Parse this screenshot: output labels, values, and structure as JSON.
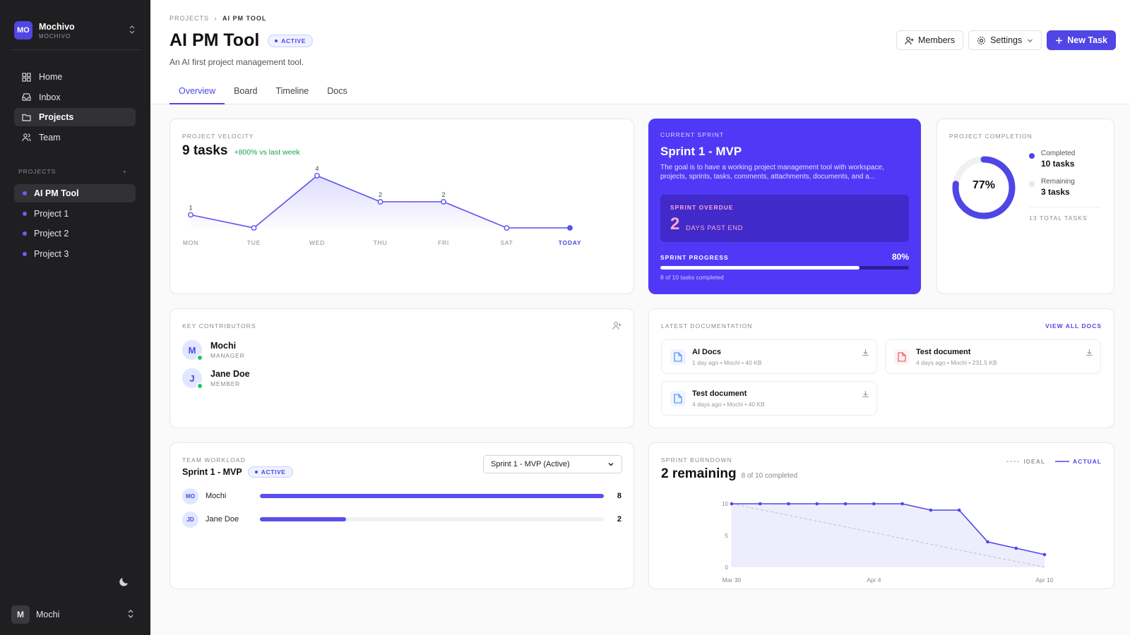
{
  "workspace": {
    "initials": "MO",
    "name": "Mochivo",
    "sub": "MOCHIVO"
  },
  "nav": [
    {
      "label": "Home",
      "icon": "grid-icon"
    },
    {
      "label": "Inbox",
      "icon": "inbox-icon"
    },
    {
      "label": "Projects",
      "icon": "folder-icon"
    },
    {
      "label": "Team",
      "icon": "users-icon"
    }
  ],
  "projects_heading": "PROJECTS",
  "projects": [
    "AI PM Tool",
    "Project 1",
    "Project 2",
    "Project 3"
  ],
  "user": {
    "initial": "M",
    "name": "Mochi"
  },
  "breadcrumb": {
    "root": "PROJECTS",
    "sep": "›",
    "current": "AI PM TOOL"
  },
  "page": {
    "title": "AI PM Tool",
    "status": "ACTIVE",
    "description": "An AI first project management tool."
  },
  "actions": {
    "members": "Members",
    "settings": "Settings",
    "new_task": "New Task"
  },
  "tabs": [
    "Overview",
    "Board",
    "Timeline",
    "Docs"
  ],
  "velocity": {
    "label": "PROJECT VELOCITY",
    "value": "9 tasks",
    "delta": "+800% vs last week",
    "days": [
      "MON",
      "TUE",
      "WED",
      "THU",
      "FRI",
      "SAT",
      "TODAY"
    ],
    "counts": [
      1,
      0,
      4,
      2,
      2,
      0,
      0
    ],
    "point_labels": [
      "1",
      "",
      "4",
      "2",
      "2",
      "",
      ""
    ]
  },
  "sprint": {
    "label": "CURRENT SPRINT",
    "title": "Sprint 1 - MVP",
    "description": "The goal is to have a working project management tool with workspace, projects, sprints, tasks, comments, attachments, documents, and a...",
    "overdue_label": "SPRINT OVERDUE",
    "overdue_days": "2",
    "overdue_text": "DAYS PAST END",
    "progress_label": "SPRINT PROGRESS",
    "progress_pct": "80%",
    "progress_value": 0.8,
    "progress_sub": "8 of 10 tasks completed"
  },
  "completion": {
    "label": "PROJECT COMPLETION",
    "pct": "77%",
    "value": 0.77,
    "completed_label": "Completed",
    "completed_value": "10 tasks",
    "remaining_label": "Remaining",
    "remaining_value": "3 tasks",
    "total": "13 TOTAL TASKS",
    "accent": "#4f46e5"
  },
  "contributors": {
    "label": "KEY CONTRIBUTORS",
    "people": [
      {
        "initial": "M",
        "name": "Mochi",
        "role": "MANAGER"
      },
      {
        "initial": "J",
        "name": "Jane Doe",
        "role": "MEMBER"
      }
    ]
  },
  "docs": {
    "label": "LATEST DOCUMENTATION",
    "view_all": "VIEW ALL DOCS",
    "items": [
      {
        "name": "AI Docs",
        "meta": "1 day ago • Mochi • 40 KB",
        "type": "doc"
      },
      {
        "name": "Test document",
        "meta": "4 days ago • Mochi • 231.5 KB",
        "type": "pdf"
      },
      {
        "name": "Test document",
        "meta": "4 days ago • Mochi • 40 KB",
        "type": "doc"
      }
    ]
  },
  "workload": {
    "label": "TEAM WORKLOAD",
    "sprint": "Sprint 1 - MVP",
    "status": "ACTIVE",
    "select_value": "Sprint 1 - MVP (Active)",
    "rows": [
      {
        "initials": "MO",
        "name": "Mochi",
        "count": "8",
        "value": 8
      },
      {
        "initials": "JD",
        "name": "Jane Doe",
        "count": "2",
        "value": 2
      }
    ],
    "max": 8
  },
  "burndown": {
    "label": "SPRINT BURNDOWN",
    "remaining": "2 remaining",
    "completed": "8 of 10 completed",
    "legend_ideal": "IDEAL",
    "legend_actual": "ACTUAL",
    "y_ticks": [
      "10",
      "5",
      "0"
    ],
    "x_ticks": [
      "Mar 30",
      "Apr 4",
      "Apr 10"
    ],
    "actual": [
      10,
      10,
      10,
      10,
      10,
      10,
      10,
      9,
      9,
      4,
      3,
      2
    ],
    "ideal": [
      10,
      0
    ]
  }
}
